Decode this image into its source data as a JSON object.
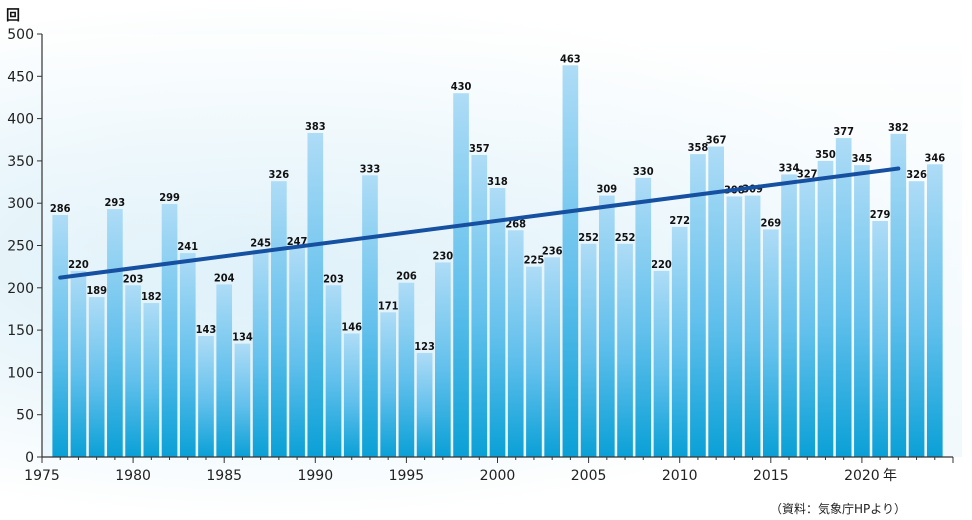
{
  "chart_data": {
    "type": "bar",
    "y_unit": "回",
    "x_unit": "年",
    "source": "（資料：気象庁HPより）",
    "ylim": [
      0,
      500
    ],
    "yticks": [
      0,
      50,
      100,
      150,
      200,
      250,
      300,
      350,
      400,
      450,
      500
    ],
    "xlim": [
      1975,
      2025
    ],
    "xticks": [
      1975,
      1980,
      1985,
      1990,
      1995,
      2000,
      2005,
      2010,
      2015,
      2020
    ],
    "years": [
      1976,
      1977,
      1978,
      1979,
      1980,
      1981,
      1982,
      1983,
      1984,
      1985,
      1986,
      1987,
      1988,
      1989,
      1990,
      1991,
      1992,
      1993,
      1994,
      1995,
      1996,
      1997,
      1998,
      1999,
      2000,
      2001,
      2002,
      2003,
      2004,
      2005,
      2006,
      2007,
      2008,
      2009,
      2010,
      2011,
      2012,
      2013,
      2014,
      2015,
      2016,
      2017,
      2018,
      2019,
      2020,
      2021,
      2022,
      2023,
      2024
    ],
    "values": [
      286,
      220,
      189,
      293,
      203,
      182,
      299,
      241,
      143,
      204,
      134,
      245,
      326,
      247,
      383,
      203,
      146,
      333,
      171,
      206,
      123,
      230,
      430,
      357,
      318,
      268,
      225,
      236,
      463,
      252,
      309,
      252,
      330,
      220,
      272,
      358,
      367,
      308,
      309,
      269,
      334,
      327,
      350,
      377,
      345,
      279,
      382,
      326,
      346
    ],
    "trend": {
      "x": [
        1976,
        2022
      ],
      "y": [
        212,
        341
      ]
    },
    "colors": {
      "bar_top": "#aedcf6",
      "bar_bottom": "#0aa0d6",
      "trend": "#1650a0",
      "axis": "#333333"
    }
  }
}
